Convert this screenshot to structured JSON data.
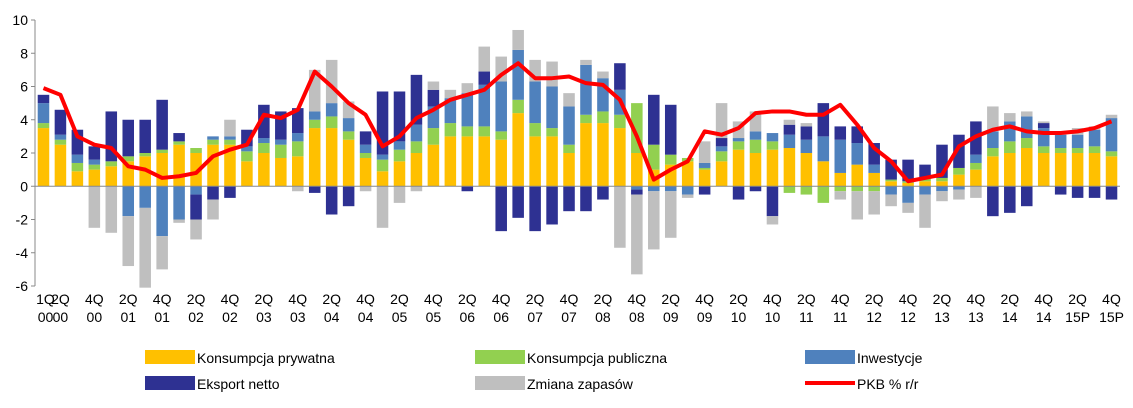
{
  "chart_data": {
    "type": "bar_line",
    "categories": [
      "1Q 00",
      "2Q 00",
      null,
      "4Q 00",
      null,
      "2Q 01",
      null,
      "4Q 01",
      null,
      "2Q 02",
      null,
      "4Q 02",
      null,
      "2Q 03",
      null,
      "4Q 03",
      null,
      "2Q 04",
      null,
      "4Q 04",
      null,
      "2Q 05",
      null,
      "4Q 05",
      null,
      "2Q 06",
      null,
      "4Q 06",
      null,
      "2Q 07",
      null,
      "4Q 07",
      null,
      "2Q 08",
      null,
      "4Q 08",
      null,
      "2Q 09",
      null,
      "4Q 09",
      null,
      "2Q 10",
      null,
      "4Q 10",
      null,
      "2Q 11",
      null,
      "4Q 11",
      null,
      "2Q 12",
      null,
      "4Q 12",
      null,
      "2Q 13",
      null,
      "4Q 13",
      null,
      "2Q 14",
      null,
      "4Q 14",
      null,
      "2Q 15P",
      null,
      "4Q 15P"
    ],
    "series": [
      {
        "name": "Konsumpcja prywatna",
        "type": "bar",
        "color": "#FFC000",
        "values": [
          3.5,
          2.5,
          0.9,
          1.0,
          1.2,
          1.5,
          1.8,
          2.0,
          2.5,
          2.0,
          2.5,
          2.5,
          1.5,
          2.0,
          1.7,
          1.8,
          3.5,
          3.5,
          2.8,
          1.7,
          0.9,
          1.5,
          2.0,
          2.5,
          3.0,
          3.0,
          3.0,
          2.8,
          4.4,
          3.0,
          3.0,
          2.0,
          3.8,
          3.8,
          3.5,
          2.0,
          1.0,
          1.3,
          1.5,
          1.0,
          1.5,
          2.2,
          2.0,
          2.2,
          2.3,
          2.0,
          1.5,
          0.8,
          1.3,
          0.8,
          0.3,
          0.2,
          0.3,
          0.3,
          0.7,
          1.0,
          1.8,
          2.0,
          2.3,
          2.0,
          2.0,
          2.0,
          2.0,
          1.8
        ]
      },
      {
        "name": "Konsumpcja publiczna",
        "type": "bar",
        "color": "#92D050",
        "values": [
          0.3,
          0.3,
          0.5,
          0.3,
          0.3,
          0.3,
          0.2,
          0.2,
          0.2,
          0.3,
          0.3,
          0.3,
          0.6,
          0.6,
          0.8,
          0.9,
          0.5,
          0.7,
          0.5,
          0.3,
          0.7,
          0.7,
          0.7,
          1.0,
          0.8,
          0.6,
          0.6,
          0.5,
          0.8,
          0.8,
          0.5,
          0.5,
          0.5,
          0.7,
          0.8,
          3.0,
          1.5,
          0.6,
          0.2,
          0.1,
          0.6,
          0.5,
          0.8,
          0.5,
          -0.4,
          -0.5,
          -1.0,
          -0.3,
          -0.3,
          -0.3,
          0.1,
          0.1,
          0.2,
          0.2,
          0.4,
          0.4,
          0.5,
          0.7,
          0.6,
          0.4,
          0.3,
          0.3,
          0.4,
          0.3
        ]
      },
      {
        "name": "Inwestycje",
        "type": "bar",
        "color": "#4F81BD",
        "values": [
          1.2,
          0.3,
          0.5,
          0.3,
          0,
          -1.8,
          -1.3,
          -3.0,
          -2.0,
          -0.5,
          0.2,
          0.2,
          0.3,
          0.3,
          0.3,
          0.5,
          0.5,
          0.8,
          0.8,
          0.5,
          0.3,
          0.5,
          1.0,
          1.3,
          1.5,
          2.0,
          2.5,
          3.0,
          3.0,
          2.5,
          2.5,
          2.3,
          3.0,
          2.0,
          1.5,
          -0.2,
          -0.3,
          -0.3,
          -0.5,
          0.3,
          0.3,
          0.2,
          0.5,
          0.5,
          0.8,
          0.8,
          1.5,
          2.0,
          1.3,
          0.5,
          -0.5,
          -1.0,
          -0.5,
          -0.3,
          -0.2,
          0.5,
          1.0,
          1.2,
          1.3,
          1.1,
          0.8,
          0.8,
          1.0,
          2.0
        ]
      },
      {
        "name": "Eksport netto",
        "type": "bar",
        "color": "#2E3192",
        "values": [
          0.5,
          1.5,
          1.5,
          0.8,
          3.0,
          2.2,
          2.0,
          3.0,
          0.5,
          -1.5,
          -0.8,
          -0.7,
          1.0,
          2.0,
          1.7,
          1.5,
          -0.4,
          -1.7,
          -1.2,
          0.8,
          3.8,
          3.0,
          3.0,
          1.0,
          0,
          -0.3,
          0.8,
          -2.7,
          -1.9,
          -2.7,
          -2.3,
          -1.5,
          -1.5,
          -0.8,
          1.6,
          -0.3,
          3.0,
          3.0,
          0,
          -0.5,
          0.5,
          -0.8,
          -0.3,
          -1.8,
          0.6,
          0.8,
          2.0,
          0.8,
          1.0,
          1.3,
          1.2,
          1.3,
          0.8,
          2.0,
          2.0,
          2.0,
          -1.8,
          -1.6,
          -1.2,
          0.3,
          -0.5,
          -0.7,
          -0.7,
          -0.8
        ]
      },
      {
        "name": "Zmiana zapasów",
        "type": "bar",
        "color": "#BFBFBF",
        "values": [
          0,
          0,
          0,
          -2.5,
          -2.8,
          -3.0,
          -4.8,
          -2.0,
          -0.2,
          -1.2,
          -1.2,
          1.0,
          0,
          0,
          0,
          -0.3,
          2.5,
          2.6,
          1.0,
          -0.3,
          -2.5,
          -1.0,
          -0.3,
          0.5,
          0.5,
          0.6,
          1.5,
          1.5,
          1.2,
          1.3,
          1.5,
          0.8,
          0.3,
          0.4,
          -3.7,
          -4.8,
          -3.5,
          -2.8,
          -0.2,
          1.3,
          2.1,
          1.0,
          1.2,
          -0.5,
          0.3,
          0.2,
          0,
          -0.5,
          -1.7,
          -1.4,
          -0.7,
          -0.6,
          -2.0,
          -0.6,
          -0.6,
          -0.7,
          1.5,
          0.5,
          0.3,
          0.1,
          0.2,
          0.4,
          0.2,
          0.2
        ]
      },
      {
        "name": "PKB % r/r",
        "type": "line",
        "color": "#FF0000",
        "values": [
          5.9,
          5.5,
          3.0,
          2.5,
          2.3,
          1.2,
          1.0,
          0.5,
          0.6,
          0.8,
          1.8,
          2.2,
          2.5,
          4.3,
          4.1,
          4.6,
          6.9,
          6.0,
          5.0,
          4.3,
          2.4,
          3.0,
          4.1,
          4.6,
          5.2,
          5.5,
          5.8,
          6.7,
          7.4,
          6.5,
          6.5,
          6.6,
          6.2,
          6.1,
          5.2,
          3.0,
          0.4,
          1.0,
          1.5,
          3.3,
          3.1,
          3.5,
          4.4,
          4.5,
          4.5,
          4.3,
          4.3,
          4.9,
          3.7,
          2.3,
          1.5,
          0.3,
          0.5,
          0.7,
          2.4,
          3.0,
          3.4,
          3.6,
          3.3,
          3.2,
          3.2,
          3.3,
          3.5,
          3.9
        ]
      }
    ],
    "ylim": [
      -6,
      10
    ],
    "yticks": [
      -6,
      -4,
      -2,
      0,
      2,
      4,
      6,
      8,
      10
    ]
  }
}
